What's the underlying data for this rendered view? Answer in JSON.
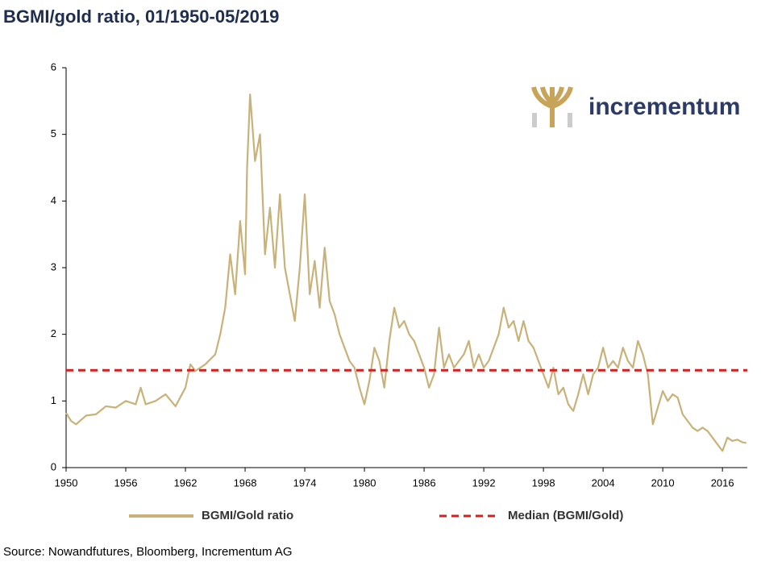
{
  "chart_data": {
    "type": "line",
    "title": "BGMI/gold ratio, 01/1950-05/2019",
    "source": "Source: Nowandfutures, Bloomberg, Incrementum AG",
    "logo": "incrementum",
    "xlim": [
      1950,
      2018.5
    ],
    "xticks": [
      1950,
      1956,
      1962,
      1968,
      1974,
      1980,
      1986,
      1992,
      1998,
      2004,
      2010,
      2016
    ],
    "ylim": [
      0,
      6
    ],
    "yticks": [
      0,
      1,
      2,
      3,
      4,
      5,
      6
    ],
    "grid": false,
    "legend": "bottom",
    "series": [
      {
        "name": "BGMI/Gold ratio",
        "color": "#c8b27a",
        "x": [
          1950,
          1950.5,
          1951,
          1952,
          1953,
          1954,
          1955,
          1956,
          1957,
          1957.5,
          1958,
          1959,
          1960,
          1961,
          1962,
          1962.5,
          1963,
          1964,
          1965,
          1965.5,
          1966,
          1966.5,
          1967,
          1967.5,
          1968,
          1968.2,
          1968.5,
          1969,
          1969.5,
          1970,
          1970.5,
          1971,
          1971.5,
          1972,
          1972.5,
          1973,
          1973.5,
          1974,
          1974.5,
          1975,
          1975.5,
          1976,
          1976.5,
          1977,
          1977.5,
          1978,
          1978.5,
          1979,
          1979.5,
          1980,
          1980.5,
          1981,
          1981.5,
          1982,
          1982.5,
          1983,
          1983.5,
          1984,
          1984.5,
          1985,
          1985.5,
          1986,
          1986.5,
          1987,
          1987.5,
          1988,
          1988.5,
          1989,
          1989.5,
          1990,
          1990.5,
          1991,
          1991.5,
          1992,
          1992.5,
          1993,
          1993.5,
          1994,
          1994.5,
          1995,
          1995.5,
          1996,
          1996.5,
          1997,
          1997.5,
          1998,
          1998.5,
          1999,
          1999.5,
          2000,
          2000.5,
          2001,
          2001.5,
          2002,
          2002.5,
          2003,
          2003.5,
          2004,
          2004.5,
          2005,
          2005.5,
          2006,
          2006.5,
          2007,
          2007.5,
          2008,
          2008.5,
          2009,
          2009.5,
          2010,
          2010.5,
          2011,
          2011.5,
          2012,
          2012.5,
          2013,
          2013.5,
          2014,
          2014.5,
          2015,
          2015.5,
          2016,
          2016.5,
          2017,
          2017.5,
          2018,
          2018.4
        ],
        "values": [
          0.82,
          0.7,
          0.65,
          0.78,
          0.8,
          0.92,
          0.9,
          1.0,
          0.95,
          1.2,
          0.95,
          1.0,
          1.1,
          0.92,
          1.2,
          1.55,
          1.45,
          1.55,
          1.7,
          2.0,
          2.4,
          3.2,
          2.6,
          3.7,
          2.9,
          4.5,
          5.6,
          4.6,
          5.0,
          3.2,
          3.9,
          3.0,
          4.1,
          3.0,
          2.6,
          2.2,
          3.0,
          4.1,
          2.6,
          3.1,
          2.4,
          3.3,
          2.5,
          2.3,
          2.0,
          1.8,
          1.6,
          1.5,
          1.2,
          0.95,
          1.3,
          1.8,
          1.6,
          1.2,
          1.9,
          2.4,
          2.1,
          2.2,
          2.0,
          1.9,
          1.7,
          1.5,
          1.2,
          1.4,
          2.1,
          1.5,
          1.7,
          1.5,
          1.6,
          1.7,
          1.9,
          1.5,
          1.7,
          1.5,
          1.6,
          1.8,
          2.0,
          2.4,
          2.1,
          2.2,
          1.9,
          2.2,
          1.9,
          1.8,
          1.6,
          1.4,
          1.2,
          1.5,
          1.1,
          1.2,
          0.95,
          0.85,
          1.1,
          1.4,
          1.1,
          1.4,
          1.5,
          1.8,
          1.5,
          1.6,
          1.5,
          1.8,
          1.6,
          1.5,
          1.9,
          1.7,
          1.4,
          0.65,
          0.9,
          1.15,
          1.0,
          1.1,
          1.05,
          0.8,
          0.7,
          0.6,
          0.55,
          0.6,
          0.55,
          0.45,
          0.35,
          0.25,
          0.45,
          0.4,
          0.42,
          0.38,
          0.37
        ]
      }
    ],
    "reference_lines": [
      {
        "name": "Median (BGMI/Gold)",
        "value": 1.46,
        "color": "#d62020"
      }
    ]
  }
}
